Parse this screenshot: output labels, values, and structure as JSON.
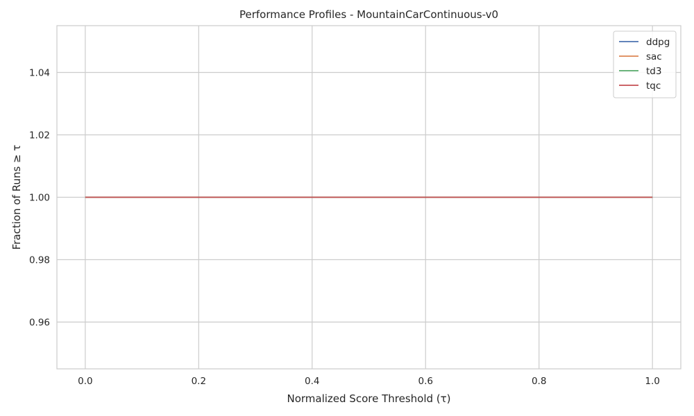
{
  "chart_data": {
    "type": "line",
    "title": "Performance Profiles - MountainCarContinuous-v0",
    "xlabel": "Normalized Score Threshold (τ)",
    "ylabel": "Fraction of Runs ≥ τ",
    "xlim": [
      -0.05,
      1.05
    ],
    "ylim": [
      0.945,
      1.055
    ],
    "xticks": [
      0.0,
      0.2,
      0.4,
      0.6,
      0.8,
      1.0
    ],
    "xtick_labels": [
      "0.0",
      "0.2",
      "0.4",
      "0.6",
      "0.8",
      "1.0"
    ],
    "yticks": [
      0.96,
      0.98,
      1.0,
      1.02,
      1.04
    ],
    "ytick_labels": [
      "0.96",
      "0.98",
      "1.00",
      "1.02",
      "1.04"
    ],
    "grid": true,
    "legend_position": "top-right",
    "series": [
      {
        "name": "ddpg",
        "color": "#4c72b0",
        "x": [
          0.0,
          1.0
        ],
        "y": [
          1.0,
          1.0
        ]
      },
      {
        "name": "sac",
        "color": "#dd8452",
        "x": [
          0.0,
          1.0
        ],
        "y": [
          1.0,
          1.0
        ]
      },
      {
        "name": "td3",
        "color": "#55a868",
        "x": [
          0.0,
          1.0
        ],
        "y": [
          1.0,
          1.0
        ]
      },
      {
        "name": "tqc",
        "color": "#c44e52",
        "x": [
          0.0,
          1.0
        ],
        "y": [
          1.0,
          1.0
        ]
      }
    ]
  }
}
